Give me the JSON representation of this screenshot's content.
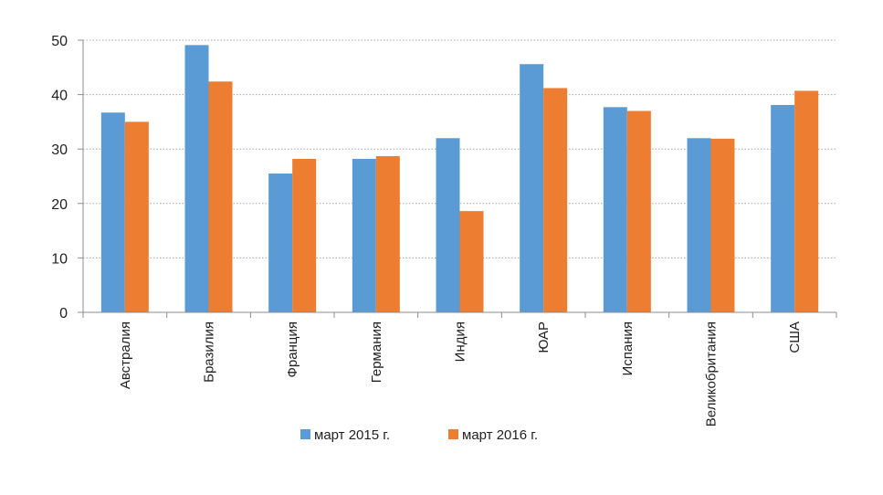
{
  "chart_data": {
    "type": "bar",
    "categories": [
      "Австралия",
      "Бразилия",
      "Франция",
      "Германия",
      "Индия",
      "ЮАР",
      "Испания",
      "Великобритания",
      "США"
    ],
    "series": [
      {
        "name": "март 2015 г.",
        "color": "#5B9BD5",
        "values": [
          36.7,
          49.1,
          25.5,
          28.2,
          32.0,
          45.6,
          37.7,
          32.0,
          38.1
        ]
      },
      {
        "name": "март 2016 г.",
        "color": "#ED7D31",
        "values": [
          35.0,
          42.4,
          28.2,
          28.7,
          18.6,
          41.2,
          37.0,
          31.9,
          40.7
        ]
      }
    ],
    "y_ticks": [
      "0",
      "10",
      "20",
      "30",
      "40",
      "50"
    ],
    "ylim": [
      0,
      50
    ],
    "grid": true,
    "grid_style": "dotted",
    "legend_position": "bottom",
    "title": "",
    "xlabel": "",
    "ylabel": ""
  }
}
